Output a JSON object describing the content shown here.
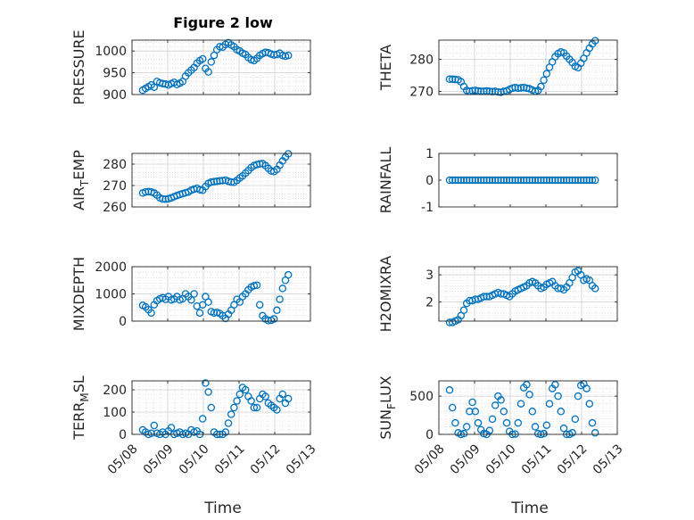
{
  "figure": {
    "title": "Figure 2 low",
    "xlabel": "Time"
  },
  "colors": {
    "marker": "#0072BD",
    "axis": "#262626",
    "grid": "#cfcfcf",
    "background": "#ffffff"
  },
  "chart_data": [
    {
      "type": "scatter",
      "ylabel": "PRESSURE",
      "ylabel_sub": "",
      "ylim": [
        900,
        1025
      ],
      "yticks": [
        900,
        950,
        1000
      ],
      "xlim": [
        "05/08",
        "05/13"
      ],
      "xticks": [],
      "grid": true,
      "title": "Figure 2 low",
      "series": [
        {
          "x": [
            8.3,
            8.38,
            8.46,
            8.54,
            8.62,
            8.7,
            8.78,
            8.86,
            8.94,
            9.02,
            9.1,
            9.18,
            9.26,
            9.34,
            9.42,
            9.5,
            9.58,
            9.66,
            9.74,
            9.82,
            9.9,
            9.98,
            10.06,
            10.14,
            10.22,
            10.3,
            10.38,
            10.46,
            10.54,
            10.62,
            10.7,
            10.78,
            10.86,
            10.94,
            11.02,
            11.1,
            11.18,
            11.26,
            11.34,
            11.42,
            11.5,
            11.58,
            11.66,
            11.74,
            11.82,
            11.9,
            11.98,
            12.06,
            12.14,
            12.22,
            12.3,
            12.38
          ],
          "y": [
            910,
            914,
            918,
            922,
            917,
            930,
            927,
            925,
            924,
            922,
            925,
            928,
            923,
            926,
            930,
            942,
            950,
            956,
            962,
            972,
            978,
            982,
            960,
            952,
            975,
            990,
            1003,
            1010,
            1009,
            1015,
            1019,
            1014,
            1010,
            1003,
            1000,
            995,
            992,
            985,
            980,
            978,
            983,
            990,
            994,
            997,
            996,
            993,
            991,
            992,
            995,
            990,
            988,
            990
          ]
        }
      ]
    },
    {
      "type": "scatter",
      "ylabel": "THETA",
      "ylabel_sub": "",
      "ylim": [
        269,
        286
      ],
      "yticks": [
        270,
        280
      ],
      "xlim": [
        "05/08",
        "05/13"
      ],
      "xticks": [],
      "grid": true,
      "title": "",
      "series": [
        {
          "x": [
            8.3,
            8.38,
            8.46,
            8.54,
            8.62,
            8.7,
            8.78,
            8.86,
            8.94,
            9.02,
            9.1,
            9.18,
            9.26,
            9.34,
            9.42,
            9.5,
            9.58,
            9.66,
            9.74,
            9.82,
            9.9,
            9.98,
            10.06,
            10.14,
            10.22,
            10.3,
            10.38,
            10.46,
            10.54,
            10.62,
            10.7,
            10.78,
            10.86,
            10.94,
            11.02,
            11.1,
            11.18,
            11.26,
            11.34,
            11.42,
            11.5,
            11.58,
            11.66,
            11.74,
            11.82,
            11.9,
            11.98,
            12.06,
            12.14,
            12.22,
            12.3,
            12.38
          ],
          "y": [
            273.8,
            273.8,
            273.7,
            273.6,
            273.0,
            271.5,
            270.3,
            270.0,
            270.2,
            270.3,
            270.1,
            270.0,
            270.0,
            270.1,
            270.0,
            269.9,
            270.0,
            269.8,
            269.7,
            270.0,
            270.1,
            270.6,
            271.0,
            271.2,
            271.0,
            271.1,
            271.2,
            271.0,
            270.8,
            270.4,
            270.0,
            270.3,
            271.5,
            273.5,
            275.5,
            277.5,
            279.2,
            280.8,
            281.8,
            282.3,
            282.0,
            281.0,
            280.0,
            279.0,
            277.8,
            277.4,
            278.8,
            280.3,
            282.0,
            283.5,
            284.8,
            285.8
          ]
        }
      ]
    },
    {
      "type": "scatter",
      "ylabel": "AIR",
      "ylabel_sub": "T",
      "ylabel_suffix": "EMP",
      "ylim": [
        260,
        285
      ],
      "yticks": [
        260,
        270,
        280
      ],
      "xlim": [
        "05/08",
        "05/13"
      ],
      "xticks": [],
      "grid": true,
      "title": "",
      "series": [
        {
          "x": [
            8.3,
            8.38,
            8.46,
            8.54,
            8.62,
            8.7,
            8.78,
            8.86,
            8.94,
            9.02,
            9.1,
            9.18,
            9.26,
            9.34,
            9.42,
            9.5,
            9.58,
            9.66,
            9.74,
            9.82,
            9.9,
            9.98,
            10.06,
            10.14,
            10.22,
            10.3,
            10.38,
            10.46,
            10.54,
            10.62,
            10.7,
            10.78,
            10.86,
            10.94,
            11.02,
            11.1,
            11.18,
            11.26,
            11.34,
            11.42,
            11.5,
            11.58,
            11.66,
            11.74,
            11.82,
            11.9,
            11.98,
            12.06,
            12.14,
            12.22,
            12.3,
            12.38
          ],
          "y": [
            266.5,
            267.0,
            267.2,
            267.0,
            266.5,
            265.5,
            264.2,
            263.7,
            263.6,
            263.8,
            264.2,
            264.8,
            265.3,
            265.8,
            266.2,
            266.6,
            267.0,
            267.8,
            268.3,
            268.7,
            268.0,
            267.8,
            269.5,
            271.0,
            271.6,
            271.8,
            272.0,
            272.2,
            272.3,
            272.5,
            272.0,
            271.6,
            271.5,
            272.4,
            273.5,
            274.5,
            275.8,
            277.0,
            278.4,
            279.3,
            279.8,
            280.1,
            280.2,
            279.3,
            278.0,
            276.8,
            276.5,
            277.5,
            279.5,
            281.5,
            283.3,
            284.8
          ]
        }
      ]
    },
    {
      "type": "scatter",
      "ylabel": "RAINFALL",
      "ylabel_sub": "",
      "ylim": [
        -1,
        1
      ],
      "yticks": [
        -1,
        0,
        1
      ],
      "xlim": [
        "05/08",
        "05/13"
      ],
      "xticks": [],
      "grid": false,
      "title": "",
      "series": [
        {
          "x": [
            8.3,
            8.38,
            8.46,
            8.54,
            8.62,
            8.7,
            8.78,
            8.86,
            8.94,
            9.02,
            9.1,
            9.18,
            9.26,
            9.34,
            9.42,
            9.5,
            9.58,
            9.66,
            9.74,
            9.82,
            9.9,
            9.98,
            10.06,
            10.14,
            10.22,
            10.3,
            10.38,
            10.46,
            10.54,
            10.62,
            10.7,
            10.78,
            10.86,
            10.94,
            11.02,
            11.1,
            11.18,
            11.26,
            11.34,
            11.42,
            11.5,
            11.58,
            11.66,
            11.74,
            11.82,
            11.9,
            11.98,
            12.06,
            12.14,
            12.22,
            12.3,
            12.38
          ],
          "y": [
            0,
            0,
            0,
            0,
            0,
            0,
            0,
            0,
            0,
            0,
            0,
            0,
            0,
            0,
            0,
            0,
            0,
            0,
            0,
            0,
            0,
            0,
            0,
            0,
            0,
            0,
            0,
            0,
            0,
            0,
            0,
            0,
            0,
            0,
            0,
            0,
            0,
            0,
            0,
            0,
            0,
            0,
            0,
            0,
            0,
            0,
            0,
            0,
            0,
            0,
            0,
            0
          ]
        }
      ]
    },
    {
      "type": "scatter",
      "ylabel": "MIXDEPTH",
      "ylabel_sub": "",
      "ylim": [
        0,
        2000
      ],
      "yticks": [
        0,
        1000,
        2000
      ],
      "xlim": [
        "05/08",
        "05/13"
      ],
      "xticks": [],
      "grid": true,
      "title": "",
      "series": [
        {
          "x": [
            8.3,
            8.38,
            8.46,
            8.54,
            8.62,
            8.7,
            8.78,
            8.86,
            8.94,
            9.02,
            9.1,
            9.18,
            9.26,
            9.34,
            9.42,
            9.5,
            9.58,
            9.66,
            9.74,
            9.82,
            9.9,
            9.98,
            10.06,
            10.14,
            10.22,
            10.3,
            10.38,
            10.46,
            10.54,
            10.62,
            10.7,
            10.78,
            10.86,
            10.94,
            11.02,
            11.1,
            11.18,
            11.26,
            11.34,
            11.42,
            11.5,
            11.58,
            11.66,
            11.74,
            11.82,
            11.9,
            11.98,
            12.06,
            12.14,
            12.22,
            12.3,
            12.38
          ],
          "y": [
            580,
            520,
            420,
            300,
            600,
            750,
            820,
            860,
            800,
            900,
            780,
            810,
            900,
            780,
            820,
            1000,
            900,
            780,
            1000,
            550,
            300,
            600,
            900,
            700,
            350,
            300,
            320,
            280,
            200,
            100,
            250,
            400,
            600,
            800,
            700,
            900,
            1000,
            1150,
            1250,
            1300,
            1320,
            600,
            200,
            80,
            20,
            30,
            80,
            400,
            800,
            1200,
            1500,
            1700
          ]
        }
      ]
    },
    {
      "type": "scatter",
      "ylabel": "H2OMIXRA",
      "ylabel_sub": "",
      "ylim": [
        1.3,
        3.3
      ],
      "yticks": [
        2,
        3
      ],
      "xlim": [
        "05/08",
        "05/13"
      ],
      "xticks": [],
      "grid": true,
      "title": "",
      "series": [
        {
          "x": [
            8.3,
            8.38,
            8.46,
            8.54,
            8.62,
            8.7,
            8.78,
            8.86,
            8.94,
            9.02,
            9.1,
            9.18,
            9.26,
            9.34,
            9.42,
            9.5,
            9.58,
            9.66,
            9.74,
            9.82,
            9.9,
            9.98,
            10.06,
            10.14,
            10.22,
            10.3,
            10.38,
            10.46,
            10.54,
            10.62,
            10.7,
            10.78,
            10.86,
            10.94,
            11.02,
            11.1,
            11.18,
            11.26,
            11.34,
            11.42,
            11.5,
            11.58,
            11.66,
            11.74,
            11.82,
            11.9,
            11.98,
            12.06,
            12.14,
            12.22,
            12.3,
            12.38
          ],
          "y": [
            1.25,
            1.25,
            1.3,
            1.35,
            1.5,
            1.7,
            1.95,
            2.05,
            2.05,
            2.1,
            2.1,
            2.15,
            2.2,
            2.2,
            2.2,
            2.25,
            2.3,
            2.35,
            2.3,
            2.3,
            2.25,
            2.2,
            2.3,
            2.4,
            2.45,
            2.5,
            2.55,
            2.6,
            2.7,
            2.75,
            2.7,
            2.6,
            2.5,
            2.55,
            2.65,
            2.7,
            2.75,
            2.6,
            2.5,
            2.5,
            2.45,
            2.55,
            2.7,
            2.9,
            3.1,
            3.15,
            3.0,
            2.8,
            2.85,
            2.8,
            2.6,
            2.5
          ]
        }
      ]
    },
    {
      "type": "scatter",
      "ylabel": "TERR",
      "ylabel_sub": "M",
      "ylabel_suffix": "SL",
      "ylim": [
        0,
        240
      ],
      "yticks": [
        0,
        100,
        200
      ],
      "xlim": [
        "05/08",
        "05/13"
      ],
      "xticks": [
        "05/08",
        "05/09",
        "05/10",
        "05/11",
        "05/12",
        "05/13"
      ],
      "grid": true,
      "title": "",
      "series": [
        {
          "x": [
            8.3,
            8.38,
            8.46,
            8.54,
            8.62,
            8.7,
            8.78,
            8.86,
            8.94,
            9.02,
            9.1,
            9.18,
            9.26,
            9.34,
            9.42,
            9.5,
            9.58,
            9.66,
            9.74,
            9.82,
            9.9,
            9.98,
            10.06,
            10.14,
            10.22,
            10.3,
            10.38,
            10.46,
            10.54,
            10.62,
            10.7,
            10.78,
            10.86,
            10.94,
            11.02,
            11.1,
            11.18,
            11.26,
            11.34,
            11.42,
            11.5,
            11.58,
            11.66,
            11.74,
            11.82,
            11.9,
            11.98,
            12.06,
            12.14,
            12.22,
            12.3,
            12.38
          ],
          "y": [
            20,
            10,
            0,
            5,
            40,
            5,
            0,
            10,
            0,
            15,
            30,
            0,
            5,
            10,
            0,
            5,
            0,
            20,
            10,
            15,
            0,
            70,
            230,
            190,
            120,
            10,
            0,
            0,
            0,
            10,
            50,
            90,
            120,
            150,
            180,
            210,
            200,
            170,
            150,
            120,
            120,
            160,
            180,
            170,
            140,
            130,
            120,
            110,
            160,
            180,
            140,
            160
          ]
        }
      ]
    },
    {
      "type": "scatter",
      "ylabel": "SUN",
      "ylabel_sub": "F",
      "ylabel_suffix": "LUX",
      "ylim": [
        0,
        700
      ],
      "yticks": [
        0,
        500
      ],
      "xlim": [
        "05/08",
        "05/13"
      ],
      "xticks": [
        "05/08",
        "05/09",
        "05/10",
        "05/11",
        "05/12",
        "05/13"
      ],
      "grid": true,
      "title": "",
      "series": [
        {
          "x": [
            8.3,
            8.38,
            8.46,
            8.54,
            8.62,
            8.7,
            8.78,
            8.86,
            8.94,
            9.02,
            9.1,
            9.18,
            9.26,
            9.34,
            9.42,
            9.5,
            9.58,
            9.66,
            9.74,
            9.82,
            9.9,
            9.98,
            10.06,
            10.14,
            10.22,
            10.3,
            10.38,
            10.46,
            10.54,
            10.62,
            10.7,
            10.78,
            10.86,
            10.94,
            11.02,
            11.1,
            11.18,
            11.26,
            11.34,
            11.42,
            11.5,
            11.58,
            11.66,
            11.74,
            11.82,
            11.9,
            11.98,
            12.06,
            12.14,
            12.22,
            12.3,
            12.38
          ],
          "y": [
            580,
            350,
            150,
            20,
            0,
            10,
            100,
            300,
            420,
            300,
            150,
            60,
            10,
            0,
            50,
            200,
            380,
            500,
            450,
            300,
            150,
            40,
            0,
            5,
            150,
            400,
            610,
            650,
            520,
            300,
            100,
            10,
            0,
            10,
            120,
            400,
            600,
            650,
            500,
            300,
            80,
            0,
            0,
            20,
            200,
            500,
            640,
            660,
            600,
            400,
            150,
            20
          ]
        }
      ]
    }
  ]
}
